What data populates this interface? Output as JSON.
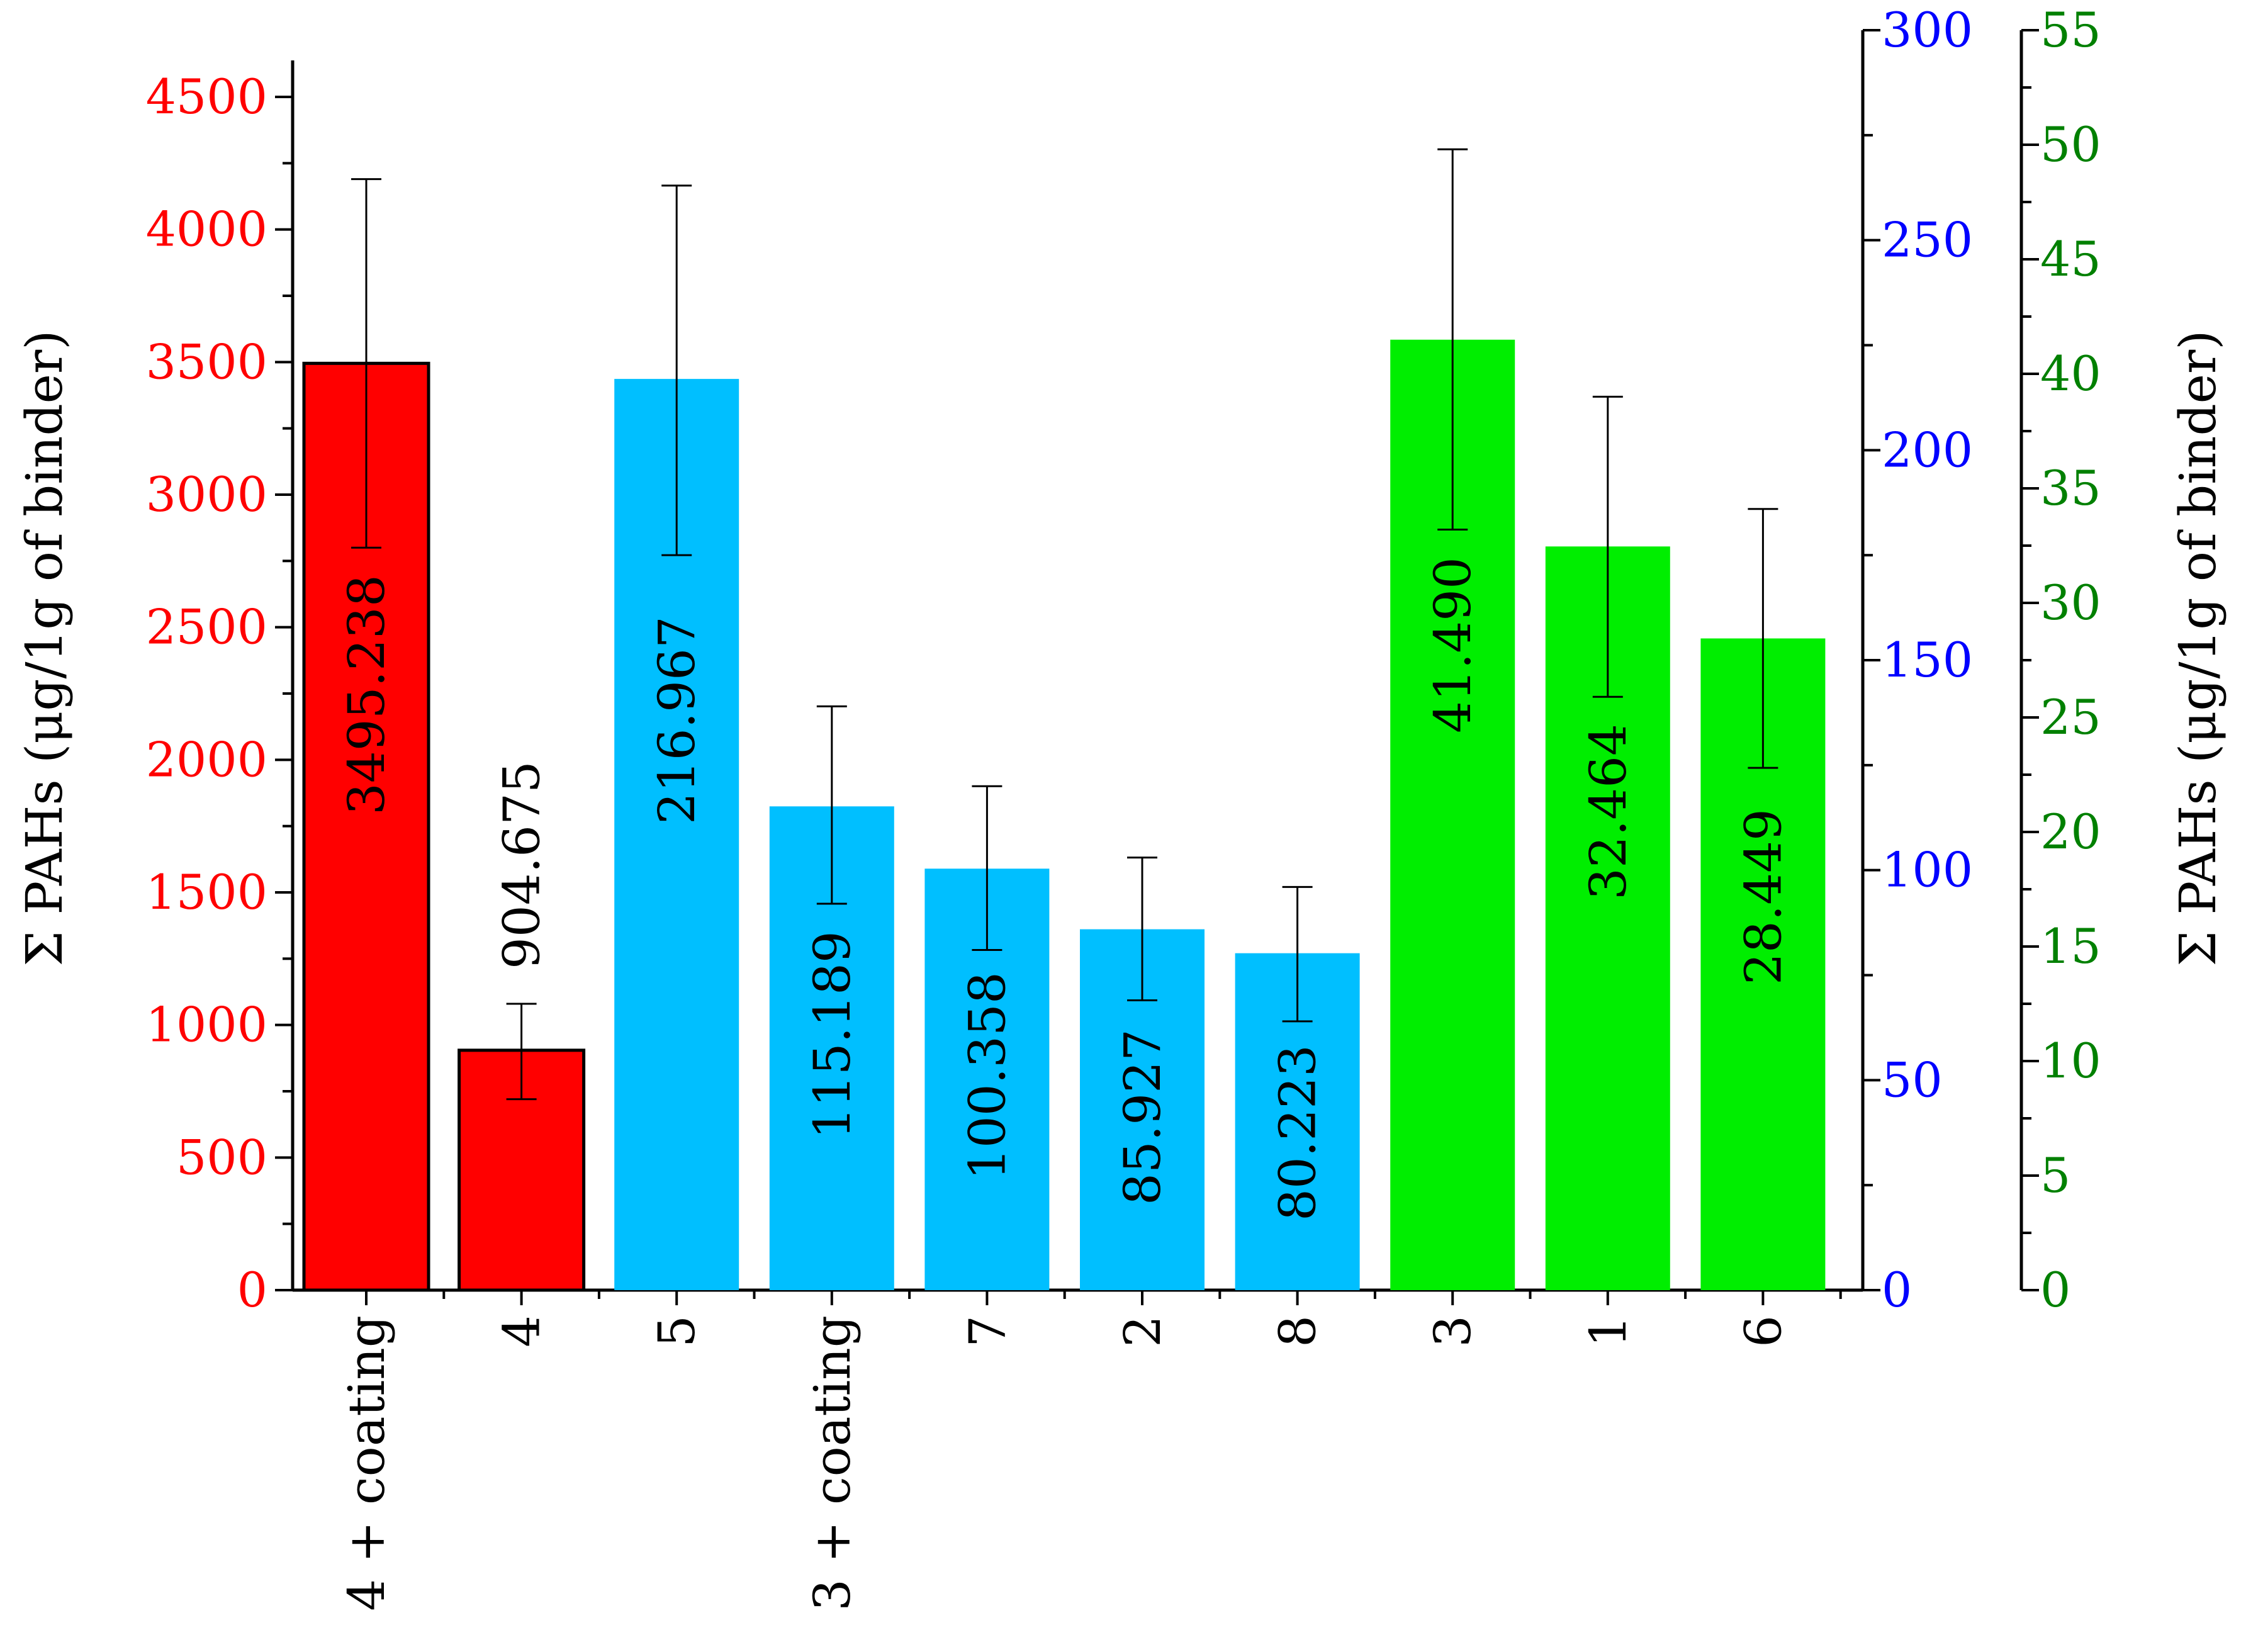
{
  "chart_data": {
    "type": "bar",
    "ylabel_left": "Σ PAHs (μg/1g of binder)",
    "ylabel_right": "Σ PAHs (μg/1g of binder)",
    "axes": {
      "red": {
        "color": "#ff0000",
        "ylim": [
          0,
          4750
        ],
        "major_ticks": [
          0,
          500,
          1000,
          1500,
          2000,
          2500,
          3000,
          3500,
          4000,
          4500
        ]
      },
      "blue": {
        "color": "#0000ff",
        "ylim": [
          0,
          300
        ],
        "major_ticks": [
          0,
          50,
          100,
          150,
          200,
          250,
          300
        ]
      },
      "green": {
        "color": "#008000",
        "ylim": [
          0,
          55
        ],
        "major_ticks": [
          0,
          5,
          10,
          15,
          20,
          25,
          30,
          35,
          40,
          45,
          50,
          55
        ]
      }
    },
    "bars": [
      {
        "category": "4 + coating",
        "value": 3495.238,
        "label": "3495.238",
        "err_low": 2800,
        "err_high": 4190,
        "axis": "red",
        "color": "#ff0000",
        "outlined": true
      },
      {
        "category": "4",
        "value": 904.675,
        "label": "904.675",
        "err_low": 720,
        "err_high": 1080,
        "axis": "red",
        "color": "#ff0000",
        "outlined": true
      },
      {
        "category": "5",
        "value": 216.967,
        "label": "216.967",
        "err_low": 175,
        "err_high": 263,
        "axis": "blue",
        "color": "#00bfff",
        "outlined": false
      },
      {
        "category": "3 + coating",
        "value": 115.189,
        "label": "115.189",
        "err_low": 92,
        "err_high": 139,
        "axis": "blue",
        "color": "#00bfff",
        "outlined": false
      },
      {
        "category": "7",
        "value": 100.358,
        "label": "100.358",
        "err_low": 81,
        "err_high": 120,
        "axis": "blue",
        "color": "#00bfff",
        "outlined": false
      },
      {
        "category": "2",
        "value": 85.927,
        "label": "85.927",
        "err_low": 69,
        "err_high": 103,
        "axis": "blue",
        "color": "#00bfff",
        "outlined": false
      },
      {
        "category": "8",
        "value": 80.223,
        "label": "80.223",
        "err_low": 64,
        "err_high": 96,
        "axis": "blue",
        "color": "#00bfff",
        "outlined": false
      },
      {
        "category": "3",
        "value": 41.49,
        "label": "41.490",
        "err_low": 33.2,
        "err_high": 49.8,
        "axis": "green",
        "color": "#00ee00",
        "outlined": false
      },
      {
        "category": "1",
        "value": 32.464,
        "label": "32.464",
        "err_low": 25.9,
        "err_high": 39.0,
        "axis": "green",
        "color": "#00ee00",
        "outlined": false
      },
      {
        "category": "6",
        "value": 28.449,
        "label": "28.449",
        "err_low": 22.8,
        "err_high": 34.1,
        "axis": "green",
        "color": "#00ee00",
        "outlined": false
      }
    ]
  }
}
